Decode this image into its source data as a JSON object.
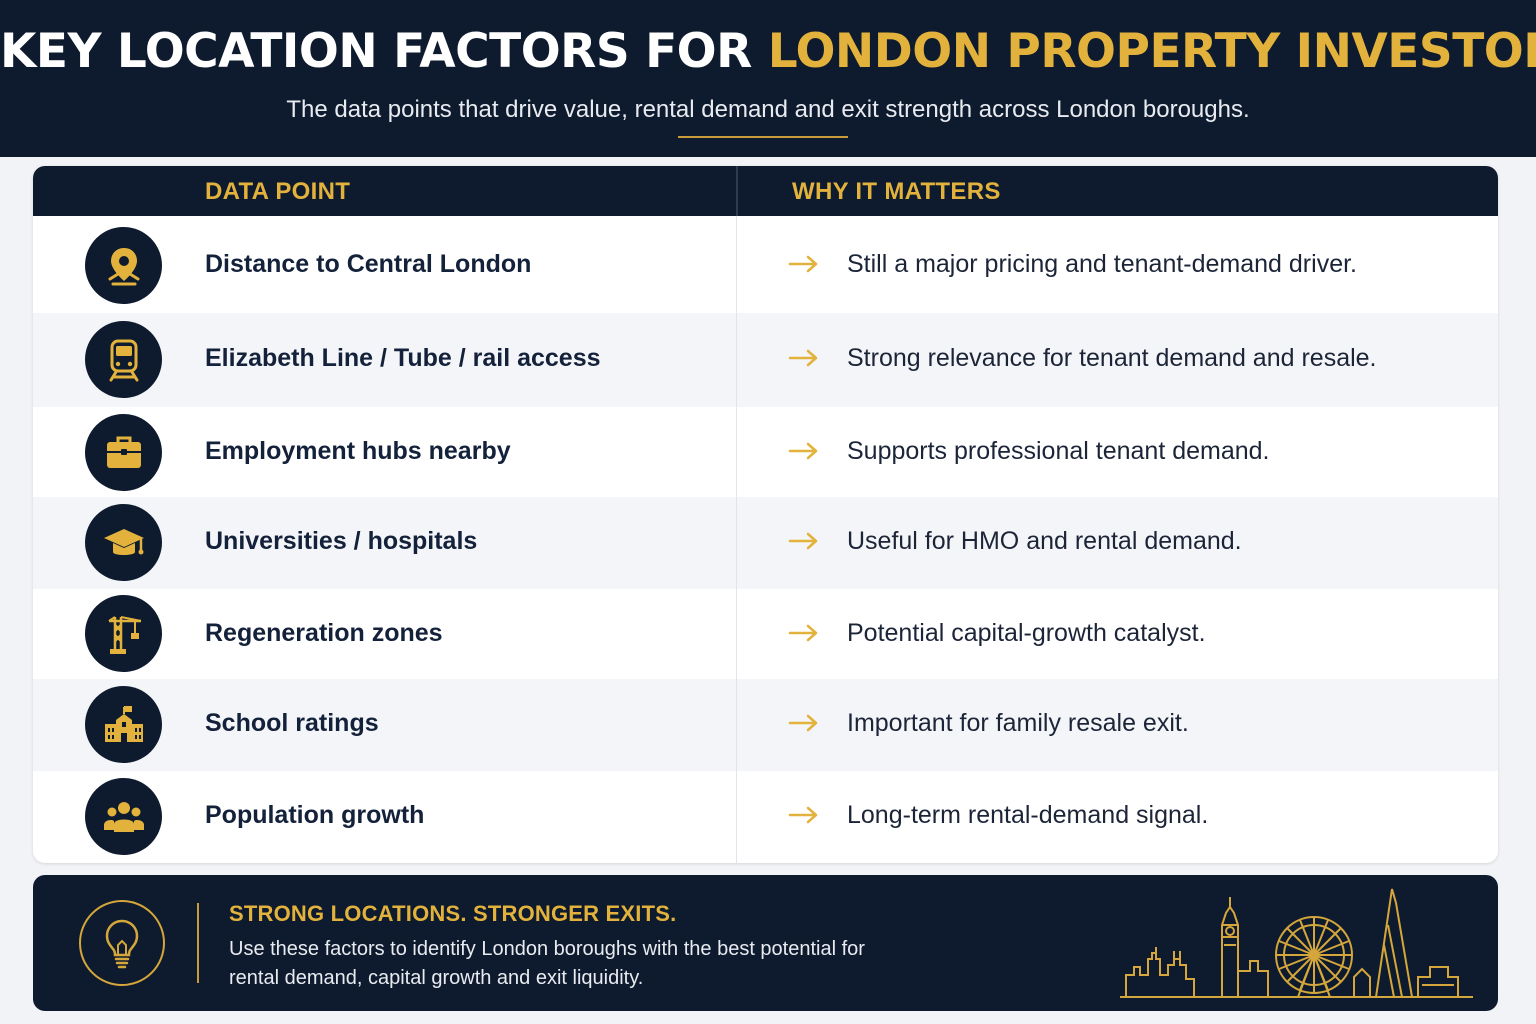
{
  "header": {
    "title_main": "KEY LOCATION FACTORS FOR ",
    "title_accent": "LONDON PROPERTY INVESTORS",
    "subtitle": "The data points that drive value, rental demand and exit strength across London boroughs."
  },
  "table": {
    "col_data_point": "DATA POINT",
    "col_why": "WHY IT MATTERS",
    "rows": [
      {
        "icon": "map-pin-icon",
        "data_point": "Distance to Central London",
        "why": "Still a major pricing and tenant-demand driver."
      },
      {
        "icon": "train-icon",
        "data_point": "Elizabeth Line / Tube / rail access",
        "why": "Strong relevance for tenant demand and resale."
      },
      {
        "icon": "briefcase-icon",
        "data_point": "Employment hubs nearby",
        "why": "Supports professional tenant demand."
      },
      {
        "icon": "graduation-cap-icon",
        "data_point": "Universities / hospitals",
        "why": "Useful for HMO and rental demand."
      },
      {
        "icon": "crane-icon",
        "data_point": "Regeneration zones",
        "why": "Potential capital-growth catalyst."
      },
      {
        "icon": "school-icon",
        "data_point": "School ratings",
        "why": "Important for family resale exit."
      },
      {
        "icon": "people-icon",
        "data_point": "Population growth",
        "why": "Long-term rental-demand signal."
      }
    ]
  },
  "footer": {
    "heading": "STRONG LOCATIONS. STRONGER EXITS.",
    "text": "Use these factors to identify London boroughs with the best potential for rental demand, capital growth and exit liquidity.",
    "icon": "lightbulb-icon",
    "illustration": "london-skyline-icon"
  },
  "colors": {
    "navy": "#0e1b2e",
    "gold": "#e2b23c",
    "row_alt": "#f4f5f8"
  }
}
